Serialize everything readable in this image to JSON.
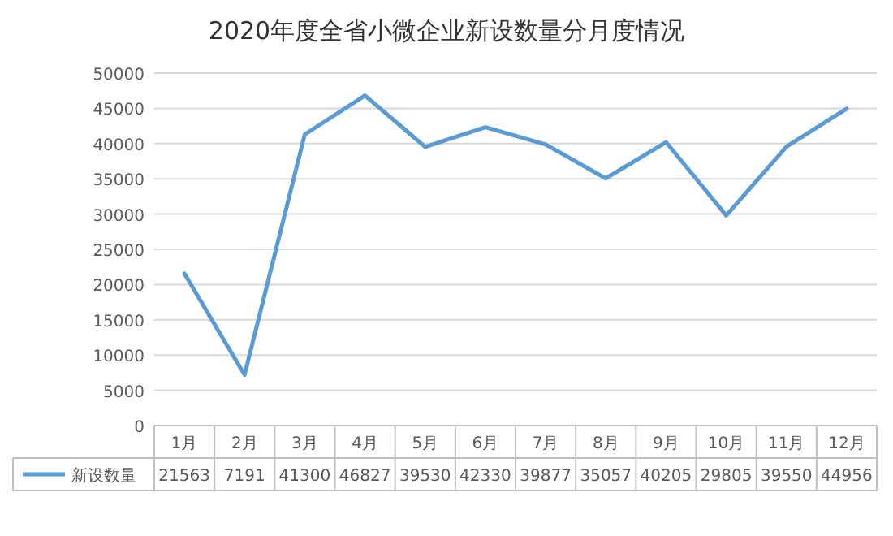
{
  "chart_data": {
    "type": "line",
    "title": "2020年度全省小微企业新设数量分月度情况",
    "categories": [
      "1月",
      "2月",
      "3月",
      "4月",
      "5月",
      "6月",
      "7月",
      "8月",
      "9月",
      "10月",
      "11月",
      "12月"
    ],
    "series": [
      {
        "name": "新设数量",
        "color": "#5b9bd5",
        "values": [
          21563,
          7191,
          41300,
          46827,
          39530,
          42330,
          39877,
          35057,
          40205,
          29805,
          39550,
          44956
        ]
      }
    ],
    "ylim": [
      0,
      50000
    ],
    "yticks": [
      0,
      5000,
      10000,
      15000,
      20000,
      25000,
      30000,
      35000,
      40000,
      45000,
      50000
    ],
    "grid": "y",
    "legend": "bottom",
    "data_labels": true,
    "marker": "none",
    "line_style": "solid"
  }
}
